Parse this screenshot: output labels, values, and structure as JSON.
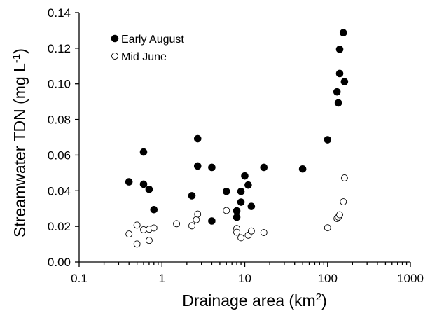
{
  "chart_data": {
    "type": "scatter",
    "title": "",
    "xlabel": {
      "main": "Drainage area (km",
      "sup": "2",
      "tail": ")"
    },
    "ylabel": {
      "main": "Streamwater TDN (mg L",
      "sup": "-1",
      "tail": ")"
    },
    "xscale": "log",
    "xlim": [
      0.1,
      1000
    ],
    "ylim": [
      0,
      0.14
    ],
    "x_ticks": [
      0.1,
      1,
      10,
      100,
      1000
    ],
    "x_tick_labels": [
      "0.1",
      "1",
      "10",
      "100",
      "1000"
    ],
    "y_ticks": [
      0.0,
      0.02,
      0.04,
      0.06,
      0.08,
      0.1,
      0.12,
      0.14
    ],
    "y_tick_labels": [
      "0.00",
      "0.02",
      "0.04",
      "0.06",
      "0.08",
      "0.10",
      "0.12",
      "0.14"
    ],
    "grid": false,
    "legend_position": "top-left",
    "series": [
      {
        "name": "Early August",
        "marker": "filled-circle",
        "color": "#000000",
        "points": [
          [
            0.4,
            0.045
          ],
          [
            0.6,
            0.0617
          ],
          [
            0.6,
            0.0437
          ],
          [
            0.7,
            0.0408
          ],
          [
            0.8,
            0.0294
          ],
          [
            2.3,
            0.0372
          ],
          [
            2.7,
            0.0692
          ],
          [
            2.7,
            0.0539
          ],
          [
            4,
            0.0531
          ],
          [
            4,
            0.023
          ],
          [
            6,
            0.0396
          ],
          [
            8,
            0.0287
          ],
          [
            8,
            0.0251
          ],
          [
            9,
            0.0396
          ],
          [
            9,
            0.0336
          ],
          [
            10,
            0.0483
          ],
          [
            11,
            0.0432
          ],
          [
            12,
            0.0312
          ],
          [
            17,
            0.0531
          ],
          [
            50,
            0.0522
          ],
          [
            100,
            0.0686
          ],
          [
            130,
            0.0955
          ],
          [
            135,
            0.0893
          ],
          [
            140,
            0.1058
          ],
          [
            140,
            0.1194
          ],
          [
            155,
            0.1287
          ],
          [
            160,
            0.1012
          ]
        ]
      },
      {
        "name": "Mid June",
        "marker": "open-circle",
        "color": "#000000",
        "points": [
          [
            0.4,
            0.0157
          ],
          [
            0.5,
            0.0101
          ],
          [
            0.5,
            0.0207
          ],
          [
            0.6,
            0.0181
          ],
          [
            0.7,
            0.0184
          ],
          [
            0.7,
            0.0121
          ],
          [
            0.8,
            0.0191
          ],
          [
            1.5,
            0.0215
          ],
          [
            2.3,
            0.0203
          ],
          [
            2.6,
            0.0237
          ],
          [
            2.7,
            0.0269
          ],
          [
            6,
            0.0289
          ],
          [
            8,
            0.0188
          ],
          [
            8,
            0.0167
          ],
          [
            9,
            0.0136
          ],
          [
            11,
            0.015
          ],
          [
            12,
            0.0174
          ],
          [
            17,
            0.0165
          ],
          [
            100,
            0.0192
          ],
          [
            130,
            0.0244
          ],
          [
            135,
            0.0252
          ],
          [
            140,
            0.0265
          ],
          [
            155,
            0.0338
          ],
          [
            160,
            0.0472
          ]
        ]
      }
    ]
  }
}
